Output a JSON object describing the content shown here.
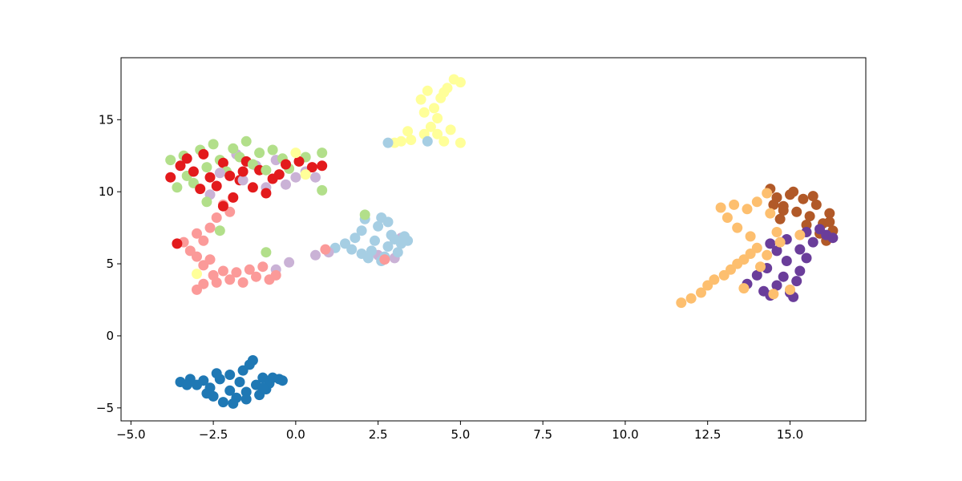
{
  "chart_data": {
    "type": "scatter",
    "title": "",
    "xlabel": "",
    "ylabel": "",
    "xlim": [
      -5.3,
      17.3
    ],
    "ylim": [
      -5.9,
      19.3
    ],
    "grid": false,
    "legend": "none",
    "x_ticks": [
      {
        "value": -5.0,
        "label": "−5.0"
      },
      {
        "value": -2.5,
        "label": "−2.5"
      },
      {
        "value": 0.0,
        "label": "0.0"
      },
      {
        "value": 2.5,
        "label": "2.5"
      },
      {
        "value": 5.0,
        "label": "5.0"
      },
      {
        "value": 7.5,
        "label": "7.5"
      },
      {
        "value": 10.0,
        "label": "10.0"
      },
      {
        "value": 12.5,
        "label": "12.5"
      },
      {
        "value": 15.0,
        "label": "15.0"
      }
    ],
    "y_ticks": [
      {
        "value": -5,
        "label": "−5"
      },
      {
        "value": 0,
        "label": "0"
      },
      {
        "value": 5,
        "label": "5"
      },
      {
        "value": 10,
        "label": "10"
      },
      {
        "value": 15,
        "label": "15"
      }
    ],
    "point_color_order": [
      "#1f78b4",
      "#a6cee3",
      "#cab2d6",
      "#fb9a99",
      "#b2df8a",
      "#e31a1c",
      "#ffff99",
      "#fdbf6f",
      "#6a3d9a",
      "#b15928"
    ],
    "clusters": [
      {
        "color": "#1f78b4",
        "points": [
          [
            -3.5,
            -3.2
          ],
          [
            -3.2,
            -3.0
          ],
          [
            -3.0,
            -3.4
          ],
          [
            -2.8,
            -3.1
          ],
          [
            -2.6,
            -3.6
          ],
          [
            -2.5,
            -4.2
          ],
          [
            -2.3,
            -3.0
          ],
          [
            -2.2,
            -4.6
          ],
          [
            -2.0,
            -3.8
          ],
          [
            -2.0,
            -2.7
          ],
          [
            -1.8,
            -4.3
          ],
          [
            -1.7,
            -3.2
          ],
          [
            -1.6,
            -2.4
          ],
          [
            -1.5,
            -3.9
          ],
          [
            -1.4,
            -2.0
          ],
          [
            -1.3,
            -1.7
          ],
          [
            -1.2,
            -3.4
          ],
          [
            -1.1,
            -4.1
          ],
          [
            -1.0,
            -2.9
          ],
          [
            -0.9,
            -3.7
          ],
          [
            -0.8,
            -3.3
          ],
          [
            -0.7,
            -2.9
          ],
          [
            -0.5,
            -3.0
          ],
          [
            -0.4,
            -3.1
          ],
          [
            -2.7,
            -4.0
          ],
          [
            -1.9,
            -4.7
          ],
          [
            -1.5,
            -4.4
          ],
          [
            -1.0,
            -3.6
          ],
          [
            -3.3,
            -3.4
          ],
          [
            -2.4,
            -2.6
          ]
        ]
      },
      {
        "color": "#a6cee3",
        "points": [
          [
            1.2,
            6.1
          ],
          [
            1.5,
            6.4
          ],
          [
            1.8,
            6.8
          ],
          [
            2.0,
            7.3
          ],
          [
            2.1,
            8.1
          ],
          [
            2.2,
            5.4
          ],
          [
            2.3,
            5.9
          ],
          [
            2.4,
            6.6
          ],
          [
            2.5,
            7.6
          ],
          [
            2.6,
            8.2
          ],
          [
            2.7,
            5.5
          ],
          [
            2.8,
            6.2
          ],
          [
            2.9,
            7.0
          ],
          [
            3.0,
            6.7
          ],
          [
            3.1,
            5.8
          ],
          [
            3.2,
            6.4
          ],
          [
            3.3,
            6.9
          ],
          [
            3.4,
            6.6
          ],
          [
            2.0,
            5.7
          ],
          [
            1.7,
            6.0
          ],
          [
            2.6,
            5.2
          ],
          [
            2.8,
            7.9
          ],
          [
            4.0,
            13.5
          ],
          [
            2.8,
            13.4
          ]
        ]
      },
      {
        "color": "#cab2d6",
        "points": [
          [
            0.6,
            5.6
          ],
          [
            1.0,
            5.8
          ],
          [
            2.5,
            5.6
          ],
          [
            3.0,
            5.4
          ],
          [
            3.2,
            6.8
          ],
          [
            -0.6,
            4.6
          ],
          [
            -0.2,
            5.1
          ],
          [
            -0.6,
            12.2
          ],
          [
            -1.2,
            11.8
          ],
          [
            -1.8,
            12.6
          ],
          [
            -2.3,
            11.3
          ],
          [
            -0.3,
            10.5
          ],
          [
            0.0,
            11.0
          ],
          [
            -0.9,
            10.3
          ],
          [
            -1.6,
            10.8
          ],
          [
            -2.6,
            9.8
          ],
          [
            0.3,
            11.4
          ],
          [
            0.6,
            11.0
          ]
        ]
      },
      {
        "color": "#fb9a99",
        "points": [
          [
            -3.4,
            6.5
          ],
          [
            -3.2,
            5.9
          ],
          [
            -3.0,
            5.5
          ],
          [
            -2.8,
            6.6
          ],
          [
            -2.8,
            4.9
          ],
          [
            -2.6,
            5.3
          ],
          [
            -2.5,
            4.2
          ],
          [
            -2.4,
            3.7
          ],
          [
            -2.2,
            4.5
          ],
          [
            -2.0,
            3.9
          ],
          [
            -1.8,
            4.4
          ],
          [
            -1.6,
            3.7
          ],
          [
            -1.4,
            4.6
          ],
          [
            -1.2,
            4.1
          ],
          [
            -1.0,
            4.8
          ],
          [
            -0.8,
            3.9
          ],
          [
            -0.6,
            4.2
          ],
          [
            -3.0,
            3.2
          ],
          [
            -2.8,
            3.6
          ],
          [
            -2.6,
            7.5
          ],
          [
            -2.4,
            8.2
          ],
          [
            -2.2,
            9.1
          ],
          [
            -2.0,
            8.6
          ],
          [
            -3.0,
            7.1
          ],
          [
            0.9,
            6.0
          ],
          [
            2.7,
            5.3
          ]
        ]
      },
      {
        "color": "#b2df8a",
        "points": [
          [
            -3.8,
            12.2
          ],
          [
            -3.6,
            10.3
          ],
          [
            -3.4,
            12.5
          ],
          [
            -3.3,
            11.1
          ],
          [
            -3.1,
            10.6
          ],
          [
            -2.9,
            12.9
          ],
          [
            -2.7,
            11.7
          ],
          [
            -2.5,
            13.3
          ],
          [
            -2.3,
            12.2
          ],
          [
            -2.1,
            11.4
          ],
          [
            -1.9,
            13.0
          ],
          [
            -1.7,
            12.4
          ],
          [
            -1.5,
            13.5
          ],
          [
            -1.3,
            11.9
          ],
          [
            -1.1,
            12.7
          ],
          [
            -0.9,
            11.5
          ],
          [
            -0.7,
            12.9
          ],
          [
            -0.4,
            12.3
          ],
          [
            -0.2,
            11.6
          ],
          [
            0.3,
            12.4
          ],
          [
            0.8,
            12.7
          ],
          [
            0.8,
            10.1
          ],
          [
            -2.7,
            9.3
          ],
          [
            -2.3,
            7.3
          ],
          [
            -0.9,
            5.8
          ],
          [
            2.1,
            8.4
          ]
        ]
      },
      {
        "color": "#e31a1c",
        "points": [
          [
            -3.8,
            11.0
          ],
          [
            -3.5,
            11.8
          ],
          [
            -3.3,
            12.3
          ],
          [
            -3.1,
            11.4
          ],
          [
            -2.9,
            10.2
          ],
          [
            -2.8,
            12.6
          ],
          [
            -2.6,
            11.0
          ],
          [
            -2.4,
            10.4
          ],
          [
            -2.2,
            12.0
          ],
          [
            -2.0,
            11.1
          ],
          [
            -1.9,
            9.6
          ],
          [
            -1.7,
            10.8
          ],
          [
            -1.5,
            12.1
          ],
          [
            -1.3,
            10.3
          ],
          [
            -1.1,
            11.5
          ],
          [
            -0.9,
            9.9
          ],
          [
            -0.7,
            10.9
          ],
          [
            -0.5,
            11.2
          ],
          [
            -0.3,
            11.9
          ],
          [
            0.1,
            12.1
          ],
          [
            0.5,
            11.7
          ],
          [
            0.8,
            11.8
          ],
          [
            -2.2,
            9.0
          ],
          [
            -3.6,
            6.4
          ],
          [
            -1.6,
            11.4
          ]
        ]
      },
      {
        "color": "#ffff99",
        "points": [
          [
            3.8,
            16.4
          ],
          [
            4.0,
            17.0
          ],
          [
            4.2,
            15.8
          ],
          [
            4.4,
            16.5
          ],
          [
            4.6,
            17.2
          ],
          [
            4.8,
            17.8
          ],
          [
            5.0,
            17.6
          ],
          [
            4.3,
            15.1
          ],
          [
            4.1,
            14.5
          ],
          [
            3.9,
            14.0
          ],
          [
            3.5,
            13.6
          ],
          [
            3.2,
            13.5
          ],
          [
            3.0,
            13.4
          ],
          [
            4.5,
            13.5
          ],
          [
            5.0,
            13.4
          ],
          [
            4.7,
            14.3
          ],
          [
            4.5,
            16.9
          ],
          [
            3.9,
            15.5
          ],
          [
            4.3,
            14.0
          ],
          [
            -3.0,
            4.3
          ],
          [
            0.0,
            12.7
          ],
          [
            0.3,
            11.2
          ],
          [
            3.4,
            14.2
          ]
        ]
      },
      {
        "color": "#fdbf6f",
        "points": [
          [
            11.7,
            2.3
          ],
          [
            12.0,
            2.6
          ],
          [
            12.3,
            3.0
          ],
          [
            12.5,
            3.5
          ],
          [
            12.7,
            3.9
          ],
          [
            13.0,
            4.2
          ],
          [
            13.2,
            4.6
          ],
          [
            13.4,
            5.0
          ],
          [
            13.6,
            5.3
          ],
          [
            13.8,
            5.7
          ],
          [
            14.0,
            6.1
          ],
          [
            13.8,
            6.9
          ],
          [
            13.4,
            7.5
          ],
          [
            13.1,
            8.2
          ],
          [
            12.9,
            8.9
          ],
          [
            13.3,
            9.1
          ],
          [
            13.7,
            8.8
          ],
          [
            14.0,
            9.3
          ],
          [
            14.3,
            9.9
          ],
          [
            14.4,
            8.5
          ],
          [
            14.6,
            7.2
          ],
          [
            14.7,
            6.5
          ],
          [
            14.3,
            5.6
          ],
          [
            14.1,
            4.8
          ],
          [
            13.6,
            3.3
          ],
          [
            14.5,
            2.9
          ],
          [
            15.0,
            3.2
          ],
          [
            15.3,
            7.0
          ]
        ]
      },
      {
        "color": "#6a3d9a",
        "points": [
          [
            13.7,
            3.6
          ],
          [
            14.0,
            4.2
          ],
          [
            14.2,
            3.1
          ],
          [
            14.4,
            2.8
          ],
          [
            14.6,
            3.5
          ],
          [
            14.8,
            4.1
          ],
          [
            15.0,
            3.0
          ],
          [
            15.2,
            3.8
          ],
          [
            15.3,
            4.5
          ],
          [
            14.9,
            5.2
          ],
          [
            14.6,
            5.9
          ],
          [
            14.4,
            6.4
          ],
          [
            14.9,
            6.7
          ],
          [
            15.3,
            6.0
          ],
          [
            15.5,
            7.2
          ],
          [
            15.7,
            6.5
          ],
          [
            15.9,
            7.4
          ],
          [
            16.1,
            7.0
          ],
          [
            16.3,
            6.8
          ],
          [
            15.1,
            2.7
          ],
          [
            14.3,
            4.7
          ],
          [
            15.5,
            5.4
          ]
        ]
      },
      {
        "color": "#b15928",
        "points": [
          [
            14.4,
            10.2
          ],
          [
            14.6,
            9.6
          ],
          [
            14.8,
            9.0
          ],
          [
            15.0,
            9.8
          ],
          [
            15.2,
            8.6
          ],
          [
            15.4,
            9.5
          ],
          [
            15.6,
            8.3
          ],
          [
            15.8,
            9.1
          ],
          [
            16.0,
            7.8
          ],
          [
            16.2,
            8.5
          ],
          [
            16.3,
            7.3
          ],
          [
            16.1,
            6.6
          ],
          [
            15.9,
            7.1
          ],
          [
            15.5,
            7.7
          ],
          [
            14.7,
            8.1
          ],
          [
            14.5,
            9.1
          ],
          [
            15.1,
            10.0
          ],
          [
            15.7,
            9.7
          ],
          [
            16.2,
            7.9
          ],
          [
            14.8,
            8.7
          ]
        ]
      }
    ]
  }
}
